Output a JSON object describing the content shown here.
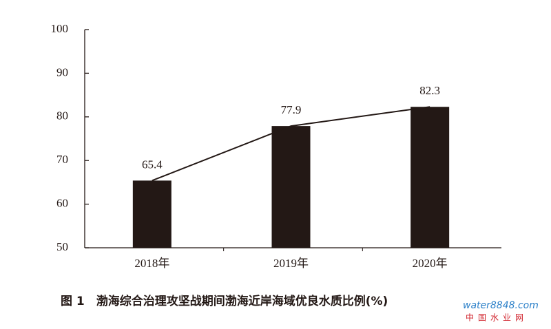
{
  "chart_data": {
    "type": "bar",
    "title": "图 1　渤海综合治理攻坚战期间渤海近岸海域优良水质比例(%)",
    "categories": [
      "2018年",
      "2019年",
      "2020年"
    ],
    "values": [
      65.4,
      77.9,
      82.3
    ],
    "color": "#231815",
    "line": true,
    "ylim": [
      50,
      100
    ],
    "yticks": [
      50,
      60,
      70,
      80,
      90,
      100
    ],
    "grid": false,
    "watermark": "water8848.com",
    "watermark_name": "中国水业网"
  }
}
